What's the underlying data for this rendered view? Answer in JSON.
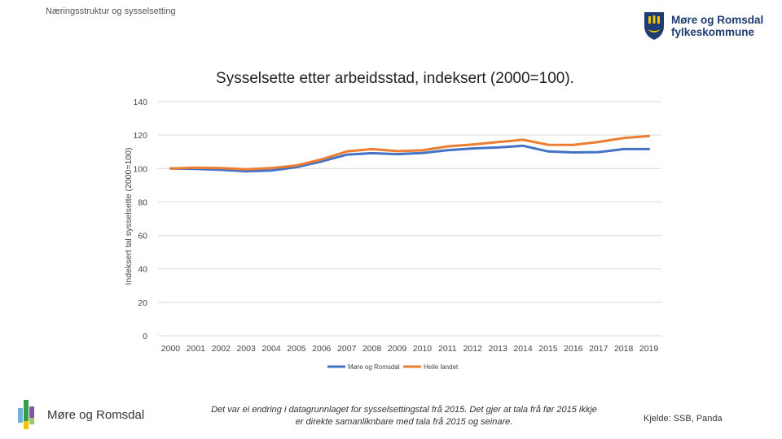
{
  "header": {
    "section_title": "Næringsstruktur og sysselsetting",
    "brand_line1": "Møre og Romsdal",
    "brand_line2": "fylkeskommune"
  },
  "colors": {
    "series1": "#4472c4",
    "series2": "#ed7d31",
    "grid": "#d9d9d9",
    "axis_text": "#444444"
  },
  "chart_data": {
    "type": "line",
    "title": "Sysselsette etter arbeidsstad, indeksert (2000=100).",
    "xlabel": "",
    "ylabel": "Indeksert tal sysselsette (2000=100)",
    "ylim": [
      0,
      140
    ],
    "yticks": [
      0,
      20,
      40,
      60,
      80,
      100,
      120,
      140
    ],
    "grid": true,
    "legend": "bottom",
    "x": [
      "2000",
      "2001",
      "2002",
      "2003",
      "2004",
      "2005",
      "2006",
      "2007",
      "2008",
      "2009",
      "2010",
      "2011",
      "2012",
      "2013",
      "2014",
      "2015",
      "2016",
      "2017",
      "2018",
      "2019"
    ],
    "series": [
      {
        "name": "Møre og Romsdal",
        "color": "#4472c4",
        "values": [
          100,
          99.8,
          99.2,
          98.3,
          98.8,
          100.8,
          104.2,
          108.3,
          109.2,
          108.6,
          109.3,
          111.0,
          112.0,
          112.6,
          113.6,
          110.2,
          109.6,
          109.8,
          111.6,
          111.6
        ]
      },
      {
        "name": "Heile landet",
        "color": "#ed7d31",
        "values": [
          100,
          100.5,
          100.3,
          99.5,
          100.3,
          101.8,
          105.5,
          110.2,
          111.6,
          110.4,
          110.9,
          113.2,
          114.4,
          115.8,
          117.2,
          114.2,
          114.1,
          115.9,
          118.2,
          119.4
        ]
      }
    ]
  },
  "footer": {
    "logo_text": "Møre og Romsdal",
    "note_line1": "Det var ei endring i datagrunnlaget for sysselsettingstal frå 2015. Det gjer at tala frå før 2015 ikkje",
    "note_line2": "er direkte samanliknbare med tala frå 2015 og seinare.",
    "source": "Kjelde: SSB, Panda"
  }
}
